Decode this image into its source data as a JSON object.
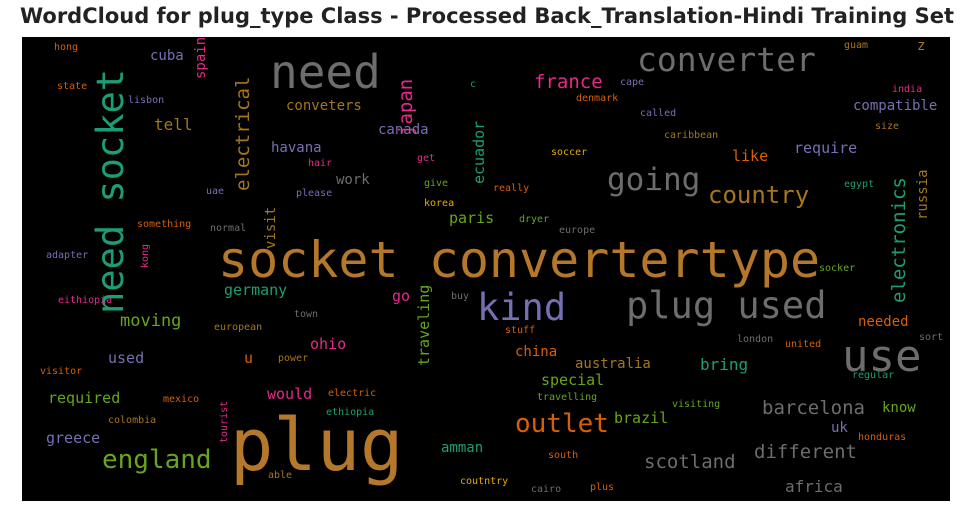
{
  "title": "WordCloud for plug_type Class - Processed Back_Translation-Hindi Training Set",
  "palette": {
    "orange": "#b5782b",
    "gray": "#6d6d6d",
    "teal": "#1b9e77",
    "green": "#66a61e",
    "magenta": "#e7298a",
    "purple": "#7570b3",
    "rust": "#d95f02",
    "olive": "#a6761d",
    "yellow": "#e6ab02"
  },
  "words": [
    {
      "text": "socket convertertype",
      "color": "orange"
    },
    {
      "text": "plug",
      "color": "orange"
    },
    {
      "text": "need socket",
      "color": "teal"
    },
    {
      "text": "need",
      "color": "gray"
    },
    {
      "text": "converter",
      "color": "gray"
    },
    {
      "text": "use",
      "color": "gray"
    },
    {
      "text": "kind",
      "color": "purple"
    },
    {
      "text": "plug used",
      "color": "gray"
    },
    {
      "text": "going",
      "color": "gray"
    },
    {
      "text": "country",
      "color": "olive"
    },
    {
      "text": "outlet",
      "color": "rust"
    },
    {
      "text": "england",
      "color": "green"
    },
    {
      "text": "scotland",
      "color": "gray"
    },
    {
      "text": "barcelona",
      "color": "gray"
    },
    {
      "text": "different",
      "color": "gray"
    },
    {
      "text": "electronics",
      "color": "teal"
    },
    {
      "text": "electrical",
      "color": "olive"
    },
    {
      "text": "japan",
      "color": "magenta"
    },
    {
      "text": "france",
      "color": "magenta"
    },
    {
      "text": "conveters",
      "color": "olive"
    },
    {
      "text": "compatible",
      "color": "purple"
    },
    {
      "text": "tell",
      "color": "olive"
    },
    {
      "text": "canada",
      "color": "purple"
    },
    {
      "text": "havana",
      "color": "purple"
    },
    {
      "text": "require",
      "color": "purple"
    },
    {
      "text": "like",
      "color": "rust"
    },
    {
      "text": "ecuador",
      "color": "teal"
    },
    {
      "text": "russia",
      "color": "olive"
    },
    {
      "text": "work",
      "color": "gray"
    },
    {
      "text": "paris",
      "color": "green"
    },
    {
      "text": "germany",
      "color": "teal"
    },
    {
      "text": "moving",
      "color": "green"
    },
    {
      "text": "go",
      "color": "magenta"
    },
    {
      "text": "traveling",
      "color": "green"
    },
    {
      "text": "needed",
      "color": "rust"
    },
    {
      "text": "used",
      "color": "purple"
    },
    {
      "text": "u",
      "color": "rust"
    },
    {
      "text": "ohio",
      "color": "magenta"
    },
    {
      "text": "china",
      "color": "rust"
    },
    {
      "text": "australia",
      "color": "olive"
    },
    {
      "text": "bring",
      "color": "teal"
    },
    {
      "text": "required",
      "color": "green"
    },
    {
      "text": "would",
      "color": "magenta"
    },
    {
      "text": "special",
      "color": "green"
    },
    {
      "text": "know",
      "color": "green"
    },
    {
      "text": "greece",
      "color": "purple"
    },
    {
      "text": "brazil",
      "color": "green"
    },
    {
      "text": "uk",
      "color": "purple"
    },
    {
      "text": "amman",
      "color": "teal"
    },
    {
      "text": "africa",
      "color": "gray"
    },
    {
      "text": "cuba",
      "color": "purple"
    },
    {
      "text": "spain",
      "color": "magenta"
    },
    {
      "text": "z",
      "color": "olive"
    },
    {
      "text": "visit",
      "color": "olive"
    },
    {
      "text": "hong",
      "color": "rust"
    },
    {
      "text": "state",
      "color": "rust"
    },
    {
      "text": "lisbon",
      "color": "purple"
    },
    {
      "text": "c",
      "color": "teal"
    },
    {
      "text": "cape",
      "color": "purple"
    },
    {
      "text": "denmark",
      "color": "rust"
    },
    {
      "text": "called",
      "color": "purple"
    },
    {
      "text": "guam",
      "color": "olive"
    },
    {
      "text": "india",
      "color": "magenta"
    },
    {
      "text": "size",
      "color": "olive"
    },
    {
      "text": "caribbean",
      "color": "olive"
    },
    {
      "text": "soccer",
      "color": "yellow"
    },
    {
      "text": "hair",
      "color": "magenta"
    },
    {
      "text": "get",
      "color": "magenta"
    },
    {
      "text": "really",
      "color": "rust"
    },
    {
      "text": "uae",
      "color": "purple"
    },
    {
      "text": "please",
      "color": "purple"
    },
    {
      "text": "give",
      "color": "green"
    },
    {
      "text": "egypt",
      "color": "teal"
    },
    {
      "text": "korea",
      "color": "yellow"
    },
    {
      "text": "something",
      "color": "rust"
    },
    {
      "text": "dryer",
      "color": "green"
    },
    {
      "text": "adapter",
      "color": "purple"
    },
    {
      "text": "normal",
      "color": "gray"
    },
    {
      "text": "kong",
      "color": "magenta"
    },
    {
      "text": "europe",
      "color": "gray"
    },
    {
      "text": "socker",
      "color": "green"
    },
    {
      "text": "eithiopia",
      "color": "magenta"
    },
    {
      "text": "town",
      "color": "gray"
    },
    {
      "text": "buy",
      "color": "gray"
    },
    {
      "text": "european",
      "color": "olive"
    },
    {
      "text": "stuff",
      "color": "rust"
    },
    {
      "text": "london",
      "color": "gray"
    },
    {
      "text": "sort",
      "color": "gray"
    },
    {
      "text": "united",
      "color": "rust"
    },
    {
      "text": "power",
      "color": "olive"
    },
    {
      "text": "visitor",
      "color": "rust"
    },
    {
      "text": "regular",
      "color": "teal"
    },
    {
      "text": "mexico",
      "color": "rust"
    },
    {
      "text": "electric",
      "color": "rust"
    },
    {
      "text": "travelling",
      "color": "green"
    },
    {
      "text": "visiting",
      "color": "green"
    },
    {
      "text": "colombia",
      "color": "olive"
    },
    {
      "text": "ethiopia",
      "color": "teal"
    },
    {
      "text": "tourist",
      "color": "magenta"
    },
    {
      "text": "honduras",
      "color": "rust"
    },
    {
      "text": "south",
      "color": "rust"
    },
    {
      "text": "able",
      "color": "olive"
    },
    {
      "text": "coutntry",
      "color": "yellow"
    },
    {
      "text": "cairo",
      "color": "gray"
    },
    {
      "text": "plus",
      "color": "rust"
    }
  ]
}
